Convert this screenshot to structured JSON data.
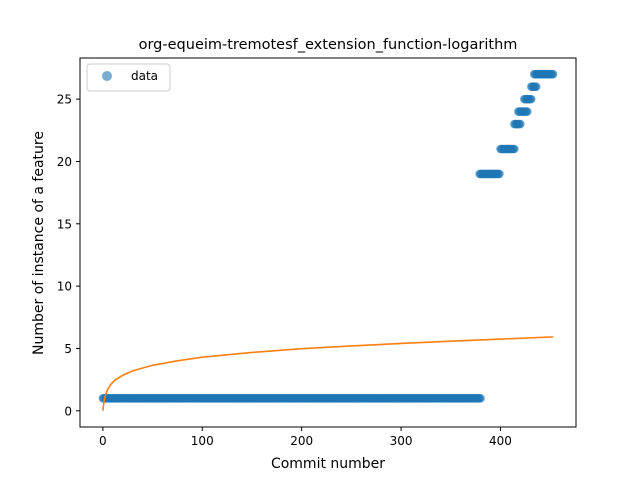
{
  "chart_data": {
    "type": "scatter",
    "title": "org-equeim-tremotesf_extension_function-logarithm",
    "xlabel": "Commit number",
    "ylabel": "Number of instance of a feature",
    "xlim": [
      -23,
      476
    ],
    "ylim": [
      -1.3,
      28.3
    ],
    "x_ticks": [
      0,
      100,
      200,
      300,
      400
    ],
    "y_ticks": [
      0,
      5,
      10,
      15,
      20,
      25
    ],
    "grid": false,
    "legend": {
      "position": "top-left",
      "entries": [
        "data"
      ]
    },
    "colors": {
      "data": "#1f77b4",
      "fit": "#ff7f0e"
    },
    "series": [
      {
        "name": "data",
        "kind": "points",
        "segments": [
          {
            "x_start": 0,
            "x_end": 380,
            "y": 1
          },
          {
            "x_start": 379,
            "x_end": 399,
            "y": 19
          },
          {
            "x_start": 400,
            "x_end": 414,
            "y": 21
          },
          {
            "x_start": 414,
            "x_end": 420,
            "y": 23
          },
          {
            "x_start": 418,
            "x_end": 427,
            "y": 24
          },
          {
            "x_start": 424,
            "x_end": 431,
            "y": 25
          },
          {
            "x_start": 431,
            "x_end": 436,
            "y": 26
          },
          {
            "x_start": 434,
            "x_end": 453,
            "y": 27
          }
        ]
      },
      {
        "kind": "line",
        "points": [
          [
            0,
            0
          ],
          [
            1,
            0.67
          ],
          [
            2,
            1.07
          ],
          [
            3,
            1.34
          ],
          [
            5,
            1.74
          ],
          [
            8,
            2.12
          ],
          [
            12,
            2.45
          ],
          [
            20,
            2.85
          ],
          [
            30,
            3.2
          ],
          [
            50,
            3.65
          ],
          [
            75,
            4.01
          ],
          [
            100,
            4.3
          ],
          [
            150,
            4.68
          ],
          [
            200,
            4.98
          ],
          [
            250,
            5.2
          ],
          [
            300,
            5.4
          ],
          [
            350,
            5.58
          ],
          [
            400,
            5.75
          ],
          [
            453,
            5.93
          ]
        ]
      }
    ]
  }
}
